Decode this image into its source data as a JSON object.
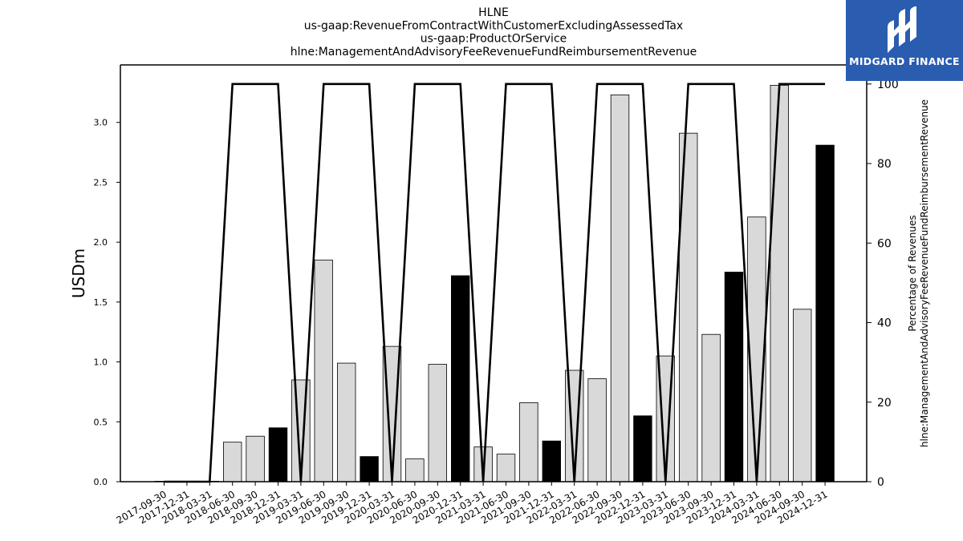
{
  "chart_data": {
    "type": "bar",
    "title_lines": [
      "HLNE",
      "us-gaap:RevenueFromContractWithCustomerExcludingAssessedTax",
      "us-gaap:ProductOrService",
      "hlne:ManagementAndAdvisoryFeeRevenueFundReimbursementRevenue"
    ],
    "ylabel": "USDm",
    "ylabel_right": [
      "Percentage of Revenues",
      "hlne:ManagementAndAdvisoryFeeRevenueFundReimbursementRevenue"
    ],
    "ylim": [
      0,
      3.48
    ],
    "ylim_right": [
      0,
      104.8
    ],
    "yticks": [
      "0.0",
      "0.5",
      "1.0",
      "1.5",
      "2.0",
      "2.5",
      "3.0"
    ],
    "yticks_right": [
      "0",
      "20",
      "40",
      "60",
      "80",
      "100"
    ],
    "categories": [
      "2017-09-30",
      "2017-12-31",
      "2018-03-31",
      "2018-06-30",
      "2018-09-30",
      "2018-12-31",
      "2019-03-31",
      "2019-06-30",
      "2019-09-30",
      "2019-12-31",
      "2020-03-31",
      "2020-06-30",
      "2020-09-30",
      "2020-12-31",
      "2021-03-31",
      "2021-06-30",
      "2021-09-30",
      "2021-12-31",
      "2022-03-31",
      "2022-06-30",
      "2022-09-30",
      "2022-12-31",
      "2023-03-31",
      "2023-06-30",
      "2023-09-30",
      "2023-12-31",
      "2024-03-31",
      "2024-06-30",
      "2024-09-30",
      "2024-12-31"
    ],
    "series": [
      {
        "values": [
          0.0,
          0.0,
          0.0,
          0.33,
          0.38,
          0.45,
          0.85,
          1.85,
          0.99,
          0.21,
          1.13,
          0.19,
          0.98,
          1.72,
          0.29,
          0.23,
          0.66,
          0.34,
          0.93,
          0.86,
          3.23,
          0.55,
          1.05,
          2.91,
          1.23,
          1.75,
          2.21,
          3.31,
          1.44,
          2.81
        ],
        "highlight": [
          false,
          false,
          false,
          false,
          false,
          true,
          false,
          false,
          false,
          true,
          false,
          false,
          false,
          true,
          false,
          false,
          false,
          true,
          false,
          false,
          false,
          true,
          false,
          false,
          false,
          true,
          false,
          false,
          false,
          true
        ]
      },
      {
        "axis": "right",
        "type": "line",
        "values": [
          0,
          0,
          0,
          100,
          100,
          100,
          0,
          100,
          100,
          100,
          0,
          100,
          100,
          100,
          0,
          100,
          100,
          100,
          0,
          100,
          100,
          100,
          0,
          100,
          100,
          100,
          0,
          100,
          100,
          100
        ]
      }
    ],
    "colors": {
      "bar": "#d9d9d9",
      "bar_highlight": "#000000",
      "line": "#000000"
    },
    "grid": false,
    "legend": "none"
  },
  "logo": {
    "text": "MIDGARD FINANCE",
    "background": "#2a5db0"
  }
}
